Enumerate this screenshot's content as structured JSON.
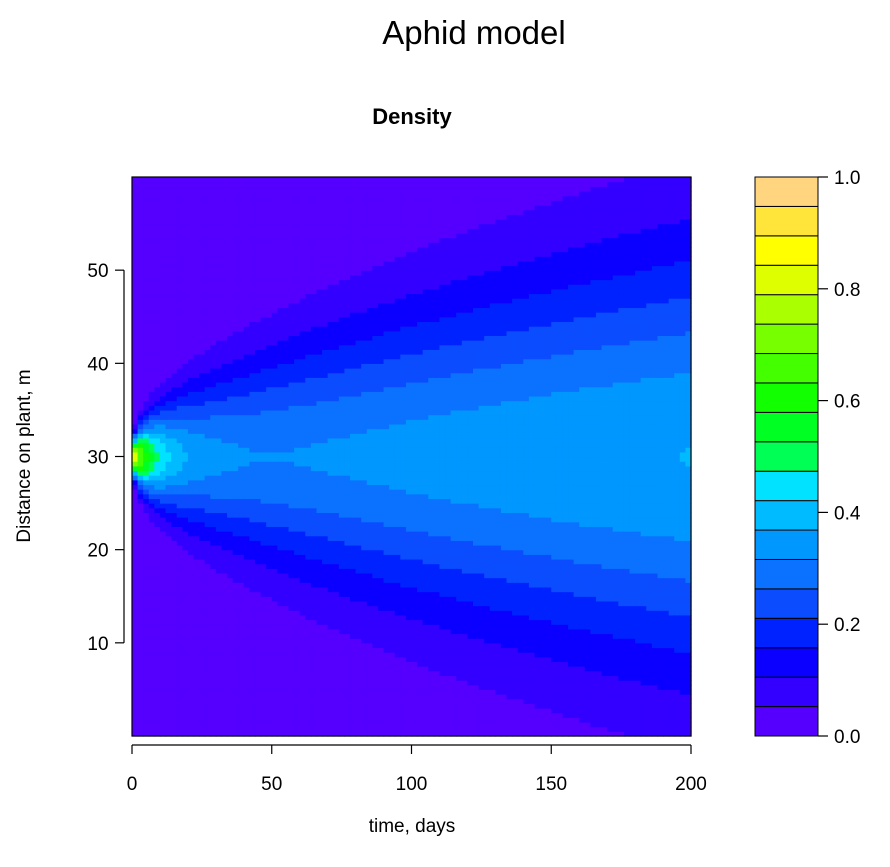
{
  "figure": {
    "suptitle": "Aphid model"
  },
  "chart_data": {
    "type": "heatmap",
    "title": "Density",
    "xlabel": "time,  days",
    "ylabel": "Distance on plant,  m",
    "xlim": [
      0,
      200
    ],
    "ylim": [
      0,
      60
    ],
    "x_ticks": [
      "0",
      "50",
      "100",
      "150",
      "200"
    ],
    "y_ticks": [
      "10",
      "20",
      "30",
      "40",
      "50"
    ],
    "colorbar": {
      "range": [
        0.0,
        1.0
      ],
      "ticks": [
        "0.0",
        "0.2",
        "0.4",
        "0.6",
        "0.8",
        "1.0"
      ],
      "levels": 19,
      "colors": [
        "#5500ff",
        "#3300ff",
        "#0b00ff",
        "#0022ff",
        "#0b4cff",
        "#0b72ff",
        "#0097ff",
        "#00bbff",
        "#00e2ff",
        "#00ff55",
        "#00ff22",
        "#11ff00",
        "#44ff00",
        "#77ff00",
        "#aaff00",
        "#ddff00",
        "#ffff00",
        "#ffe53a",
        "#ffd580",
        "#ffe2bb"
      ]
    },
    "description_fields": {
      "model": "diffusion from a point source near 30 m spreading over time"
    }
  }
}
